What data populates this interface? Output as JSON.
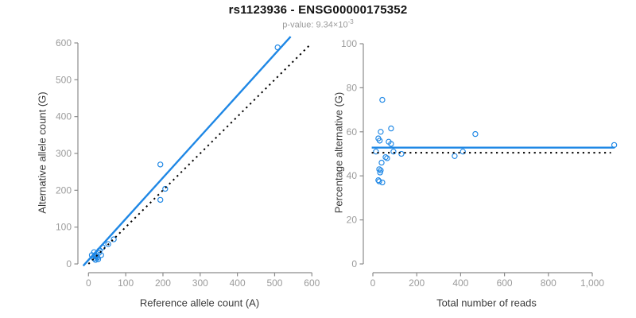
{
  "header": {
    "title": "rs1123936 - ENSG00000175352",
    "pvalue_label": "p-value:",
    "pvalue_base": "9.34×10",
    "pvalue_exponent": "-3"
  },
  "colors": {
    "accent": "#1E87E5",
    "identity": "#000000",
    "axis": "#8C8C8C",
    "tick_text": "#9B9B9B"
  },
  "chart_data": [
    {
      "type": "scatter",
      "xlabel": "Reference allele count (A)",
      "ylabel": "Alternative allele count (G)",
      "xlim": [
        0,
        600
      ],
      "ylim": [
        0,
        600
      ],
      "grid": false,
      "xticks": {
        "values": [
          0,
          100,
          200,
          300,
          400,
          500,
          600
        ],
        "labels": [
          "0",
          "100",
          "200",
          "300",
          "400",
          "500",
          "600"
        ]
      },
      "yticks": {
        "values": [
          0,
          100,
          200,
          300,
          400,
          500,
          600
        ],
        "labels": [
          "0",
          "100",
          "200",
          "300",
          "400",
          "500",
          "600"
        ]
      },
      "points": [
        [
          9,
          24
        ],
        [
          15,
          32
        ],
        [
          15,
          15
        ],
        [
          19,
          11
        ],
        [
          21,
          19
        ],
        [
          24,
          17
        ],
        [
          26,
          13
        ],
        [
          28,
          30
        ],
        [
          30,
          37
        ],
        [
          34,
          24
        ],
        [
          38,
          45
        ],
        [
          53,
          54
        ],
        [
          68,
          67
        ],
        [
          18,
          20
        ],
        [
          22,
          22
        ],
        [
          193,
          174
        ],
        [
          206,
          204
        ],
        [
          193,
          270
        ],
        [
          508,
          588
        ]
      ],
      "lines": [
        {
          "name": "regression-line",
          "style": "solid",
          "color": "accent",
          "x": [
            -14,
            543
          ],
          "y": [
            -5,
            617
          ],
          "width": 2.4
        },
        {
          "name": "identity-line",
          "style": "dotted",
          "color": "#000000",
          "x": [
            0,
            595
          ],
          "y": [
            0,
            595
          ],
          "width": 2
        }
      ]
    },
    {
      "type": "scatter",
      "xlabel": "Total number of reads",
      "ylabel": "Percentage alternative (G)",
      "xlim": [
        0,
        1100
      ],
      "ylim": [
        0,
        100
      ],
      "grid": false,
      "xticks": {
        "values": [
          0,
          200,
          400,
          600,
          800,
          1000
        ],
        "labels": [
          "0",
          "200",
          "400",
          "600",
          "800",
          "1,000"
        ]
      },
      "yticks": {
        "values": [
          0,
          20,
          40,
          60,
          80,
          100
        ],
        "labels": [
          "0",
          "20",
          "40",
          "60",
          "80",
          "100"
        ]
      },
      "points": [
        [
          43,
          74.5
        ],
        [
          36,
          60
        ],
        [
          83,
          61.5
        ],
        [
          25,
          57
        ],
        [
          31,
          56
        ],
        [
          72,
          55.5
        ],
        [
          83,
          54.5
        ],
        [
          14,
          51
        ],
        [
          94,
          51
        ],
        [
          130,
          50
        ],
        [
          58,
          48.5
        ],
        [
          65,
          48
        ],
        [
          40,
          46
        ],
        [
          29,
          43
        ],
        [
          36,
          42.5
        ],
        [
          33,
          41.5
        ],
        [
          25,
          38
        ],
        [
          29,
          37.5
        ],
        [
          43,
          37
        ],
        [
          373,
          49
        ],
        [
          410,
          51
        ],
        [
          467,
          59
        ],
        [
          1100,
          54
        ]
      ],
      "lines": [
        {
          "name": "mean-percentage-line",
          "style": "solid",
          "color": "accent",
          "x": [
            -5,
            1102
          ],
          "y": [
            52.8,
            52.8
          ],
          "width": 2.4
        },
        {
          "name": "expected-percentage-line",
          "style": "dotted",
          "color": "#000000",
          "x": [
            -5,
            1085
          ],
          "y": [
            50.5,
            50.5
          ],
          "width": 2
        }
      ]
    }
  ]
}
